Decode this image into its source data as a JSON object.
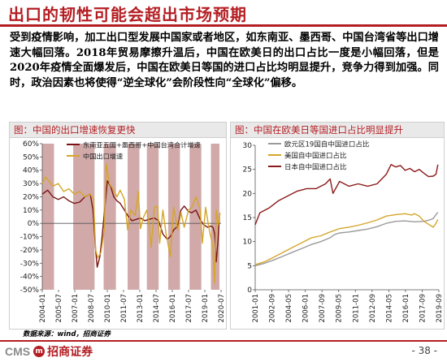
{
  "header": {
    "title": "出口的韧性可能会超出市场预期"
  },
  "body": {
    "paragraph": "受到疫情影响，加工出口型发展中国家或者地区，如东南亚、墨西哥、中国台湾省等出口增速大幅回落。2018年贸易摩擦升温后，中国在欧美日的出口占比一度是小幅回落，但是2020年疫情全面爆发后，中国在欧美日等国的进口占比均明显提升，竞争力得到加强。同时，政治因素也将使得“逆全球化”会阶段性向“全球化”偏移。"
  },
  "footer": {
    "source": "数据来源：wind，招商证券",
    "logo_text": "CMS",
    "logo_mark": "m",
    "company": "招商证券",
    "page": "- 38 -",
    "accent": "#b41e23"
  },
  "chart_data": [
    {
      "type": "line",
      "title": "图：中国的出口增速恢复更快",
      "x_tick_labels": [
        "2004-01",
        "2005-07",
        "2007-01",
        "2008-07",
        "2010-01",
        "2011-07",
        "2013-01",
        "2014-07",
        "2016-01",
        "2017-07",
        "2019-01",
        "2020-07"
      ],
      "y_tick_labels": [
        "60%",
        "50%",
        "40%",
        "30%",
        "20%",
        "10%",
        "0%",
        "-10%",
        "-20%",
        "-30%",
        "-40%",
        "-50%"
      ],
      "ylim": [
        -50,
        60
      ],
      "xlim": [
        2004.0,
        2020.75
      ],
      "grid": false,
      "legend_position": "top",
      "shaded_periods": [
        [
          2004.0,
          2005.1
        ],
        [
          2006.9,
          2008.9
        ],
        [
          2009.75,
          2010.9
        ],
        [
          2012.0,
          2013.1
        ],
        [
          2013.8,
          2014.9
        ],
        [
          2015.8,
          2016.9
        ],
        [
          2017.8,
          2018.9
        ],
        [
          2019.8,
          2020.6
        ]
      ],
      "shade_color": "#c99a9a",
      "series": [
        {
          "name": "东南亚五国+墨西哥+中国台湾合计增速",
          "color": "#7a1414",
          "x": [
            2004.0,
            2004.5,
            2005.0,
            2005.5,
            2006.0,
            2006.5,
            2007.0,
            2007.5,
            2008.0,
            2008.5,
            2008.75,
            2009.0,
            2009.15,
            2009.4,
            2009.6,
            2009.9,
            2010.1,
            2010.4,
            2010.7,
            2011.0,
            2011.3,
            2011.7,
            2012.0,
            2012.4,
            2012.8,
            2013.2,
            2013.6,
            2014.0,
            2014.5,
            2014.9,
            2015.3,
            2015.7,
            2016.0,
            2016.3,
            2016.7,
            2017.0,
            2017.3,
            2017.7,
            2018.0,
            2018.4,
            2018.8,
            2019.1,
            2019.5,
            2019.8,
            2020.0,
            2020.15,
            2020.3,
            2020.45,
            2020.6
          ],
          "values": [
            22,
            25,
            20,
            18,
            20,
            17,
            15,
            16,
            20,
            22,
            10,
            -20,
            -33,
            -25,
            -10,
            15,
            32,
            28,
            20,
            17,
            15,
            10,
            6,
            2,
            3,
            4,
            2,
            3,
            4,
            2,
            -8,
            -12,
            -10,
            -5,
            -2,
            10,
            13,
            9,
            8,
            10,
            3,
            -1,
            -3,
            -2,
            -3,
            -8,
            -29,
            -14,
            5
          ]
        },
        {
          "name": "中国出口增速",
          "color": "#d4a62a",
          "x": [
            2004.0,
            2004.3,
            2004.6,
            2005.0,
            2005.5,
            2006.0,
            2006.5,
            2007.0,
            2007.5,
            2008.0,
            2008.5,
            2008.8,
            2009.0,
            2009.2,
            2009.5,
            2009.8,
            2010.0,
            2010.3,
            2010.6,
            2011.0,
            2011.3,
            2011.7,
            2012.0,
            2012.3,
            2012.7,
            2013.0,
            2013.2,
            2013.5,
            2013.8,
            2014.0,
            2014.2,
            2014.5,
            2014.8,
            2015.0,
            2015.3,
            2015.6,
            2016.0,
            2016.3,
            2016.7,
            2017.0,
            2017.3,
            2017.7,
            2018.0,
            2018.4,
            2018.8,
            2019.0,
            2019.3,
            2019.6,
            2020.0,
            2020.15,
            2020.3,
            2020.5,
            2020.65
          ],
          "values": [
            30,
            35,
            32,
            28,
            30,
            24,
            26,
            22,
            24,
            20,
            22,
            18,
            -20,
            -26,
            -22,
            -5,
            45,
            30,
            26,
            20,
            25,
            18,
            -5,
            10,
            6,
            24,
            -4,
            5,
            10,
            0,
            -18,
            12,
            13,
            -15,
            10,
            -8,
            -25,
            12,
            -5,
            8,
            -3,
            10,
            12,
            20,
            10,
            -15,
            12,
            -3,
            -18,
            -45,
            10,
            -1,
            8
          ]
        }
      ]
    },
    {
      "type": "line",
      "title": "图：中国在欧美日等国进口占比明显提升",
      "x_tick_labels": [
        "2001-01",
        "2002-09",
        "2004-05",
        "2006-01",
        "2007-09",
        "2009-05",
        "2011-01",
        "2012-09",
        "2014-05",
        "2016-01",
        "2017-09",
        "2019-09"
      ],
      "y_tick_labels": [
        "30",
        "25",
        "20",
        "15",
        "10",
        "5",
        "0"
      ],
      "ylim": [
        0,
        30
      ],
      "xlim": [
        2001.0,
        2020.6
      ],
      "grid": false,
      "legend_position": "top-left",
      "series": [
        {
          "name": "欧元区19国自中国进口占比",
          "color": "#9a9a9a",
          "x": [
            2001.0,
            2002.0,
            2003.0,
            2004.0,
            2005.0,
            2006.0,
            2007.0,
            2008.0,
            2009.0,
            2009.5,
            2010.0,
            2011.0,
            2012.0,
            2013.0,
            2014.0,
            2015.0,
            2016.0,
            2017.0,
            2018.0,
            2019.0,
            2019.6,
            2020.0,
            2020.3,
            2020.5
          ],
          "values": [
            5.0,
            5.5,
            6.2,
            7.0,
            7.8,
            8.6,
            9.4,
            10.0,
            10.8,
            11.5,
            11.8,
            12.0,
            12.3,
            12.6,
            13.1,
            13.8,
            14.2,
            14.3,
            14.1,
            14.2,
            14.5,
            14.8,
            15.6,
            16.1
          ]
        },
        {
          "name": "美国自中国进口占比",
          "color": "#d4a62a",
          "x": [
            2001.0,
            2002.0,
            2003.0,
            2004.0,
            2005.0,
            2006.0,
            2007.0,
            2008.0,
            2009.0,
            2010.0,
            2011.0,
            2012.0,
            2013.0,
            2014.0,
            2015.0,
            2016.0,
            2017.0,
            2017.7,
            2018.0,
            2018.5,
            2019.0,
            2019.5,
            2020.0,
            2020.3,
            2020.5
          ],
          "values": [
            5.2,
            5.8,
            6.8,
            7.8,
            8.8,
            9.8,
            10.8,
            11.2,
            12.0,
            12.7,
            13.0,
            13.4,
            13.9,
            14.5,
            15.3,
            15.6,
            15.8,
            15.5,
            15.8,
            15.3,
            14.2,
            13.6,
            13.0,
            13.8,
            14.6
          ]
        },
        {
          "name": "日本自中国进口占比",
          "color": "#8b1a1a",
          "x": [
            2001.0,
            2001.5,
            2002.5,
            2003.5,
            2004.5,
            2005.5,
            2006.5,
            2007.5,
            2008.5,
            2009.0,
            2009.3,
            2010.0,
            2011.0,
            2012.0,
            2013.0,
            2014.0,
            2015.0,
            2015.5,
            2016.0,
            2016.5,
            2017.0,
            2017.5,
            2018.0,
            2018.5,
            2019.0,
            2019.5,
            2020.0,
            2020.3,
            2020.5
          ],
          "values": [
            13.5,
            16.0,
            17.0,
            18.5,
            19.5,
            20.5,
            21.0,
            21.0,
            22.0,
            23.0,
            20.0,
            22.5,
            21.5,
            22.0,
            21.5,
            22.0,
            24.0,
            26.0,
            25.5,
            25.8,
            24.8,
            25.2,
            24.5,
            25.0,
            24.2,
            23.5,
            23.6,
            24.0,
            26.0
          ]
        }
      ]
    }
  ]
}
